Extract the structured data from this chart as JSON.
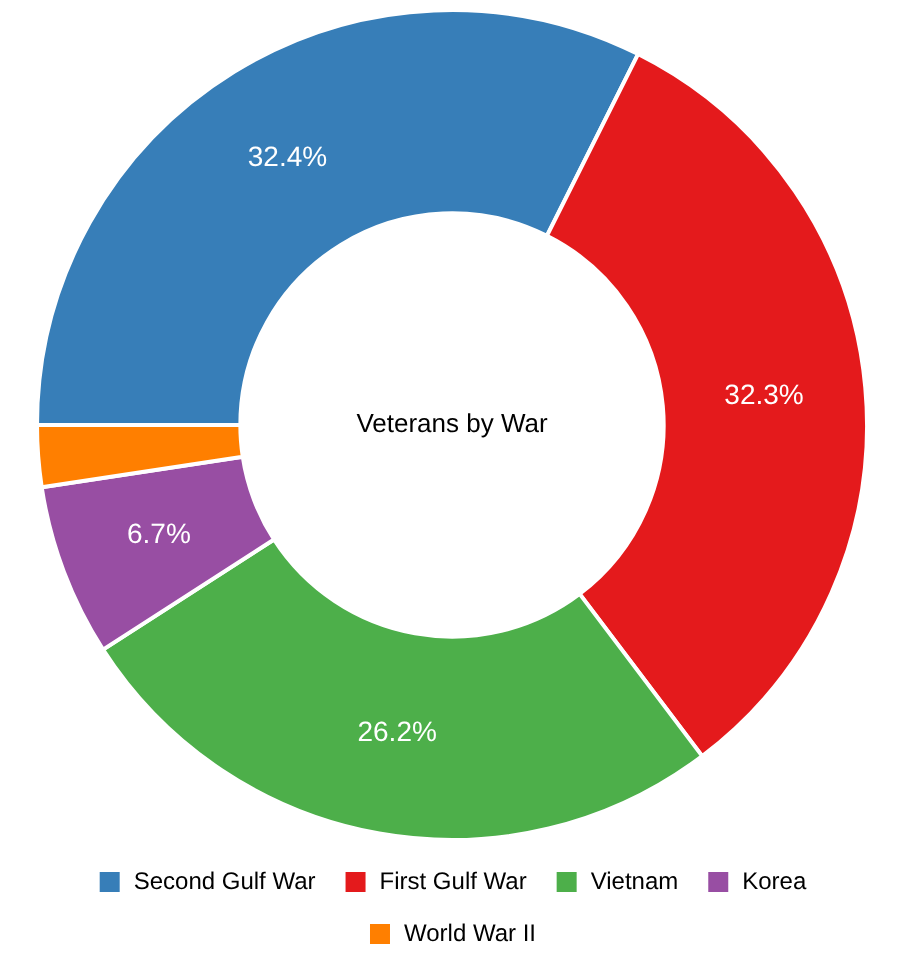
{
  "chart_data": {
    "type": "donut",
    "title": "Veterans by War",
    "categories": [
      "Second Gulf War",
      "First Gulf War",
      "Vietnam",
      "Korea",
      "World War II"
    ],
    "values": [
      32.4,
      32.3,
      26.2,
      6.7,
      2.4
    ],
    "colors": [
      "#377eb8",
      "#e41a1c",
      "#4daf4a",
      "#984ea3",
      "#ff7f00"
    ],
    "value_labels": [
      "32.4%",
      "32.3%",
      "26.2%",
      "6.7%",
      null
    ],
    "legend": "bottom"
  }
}
